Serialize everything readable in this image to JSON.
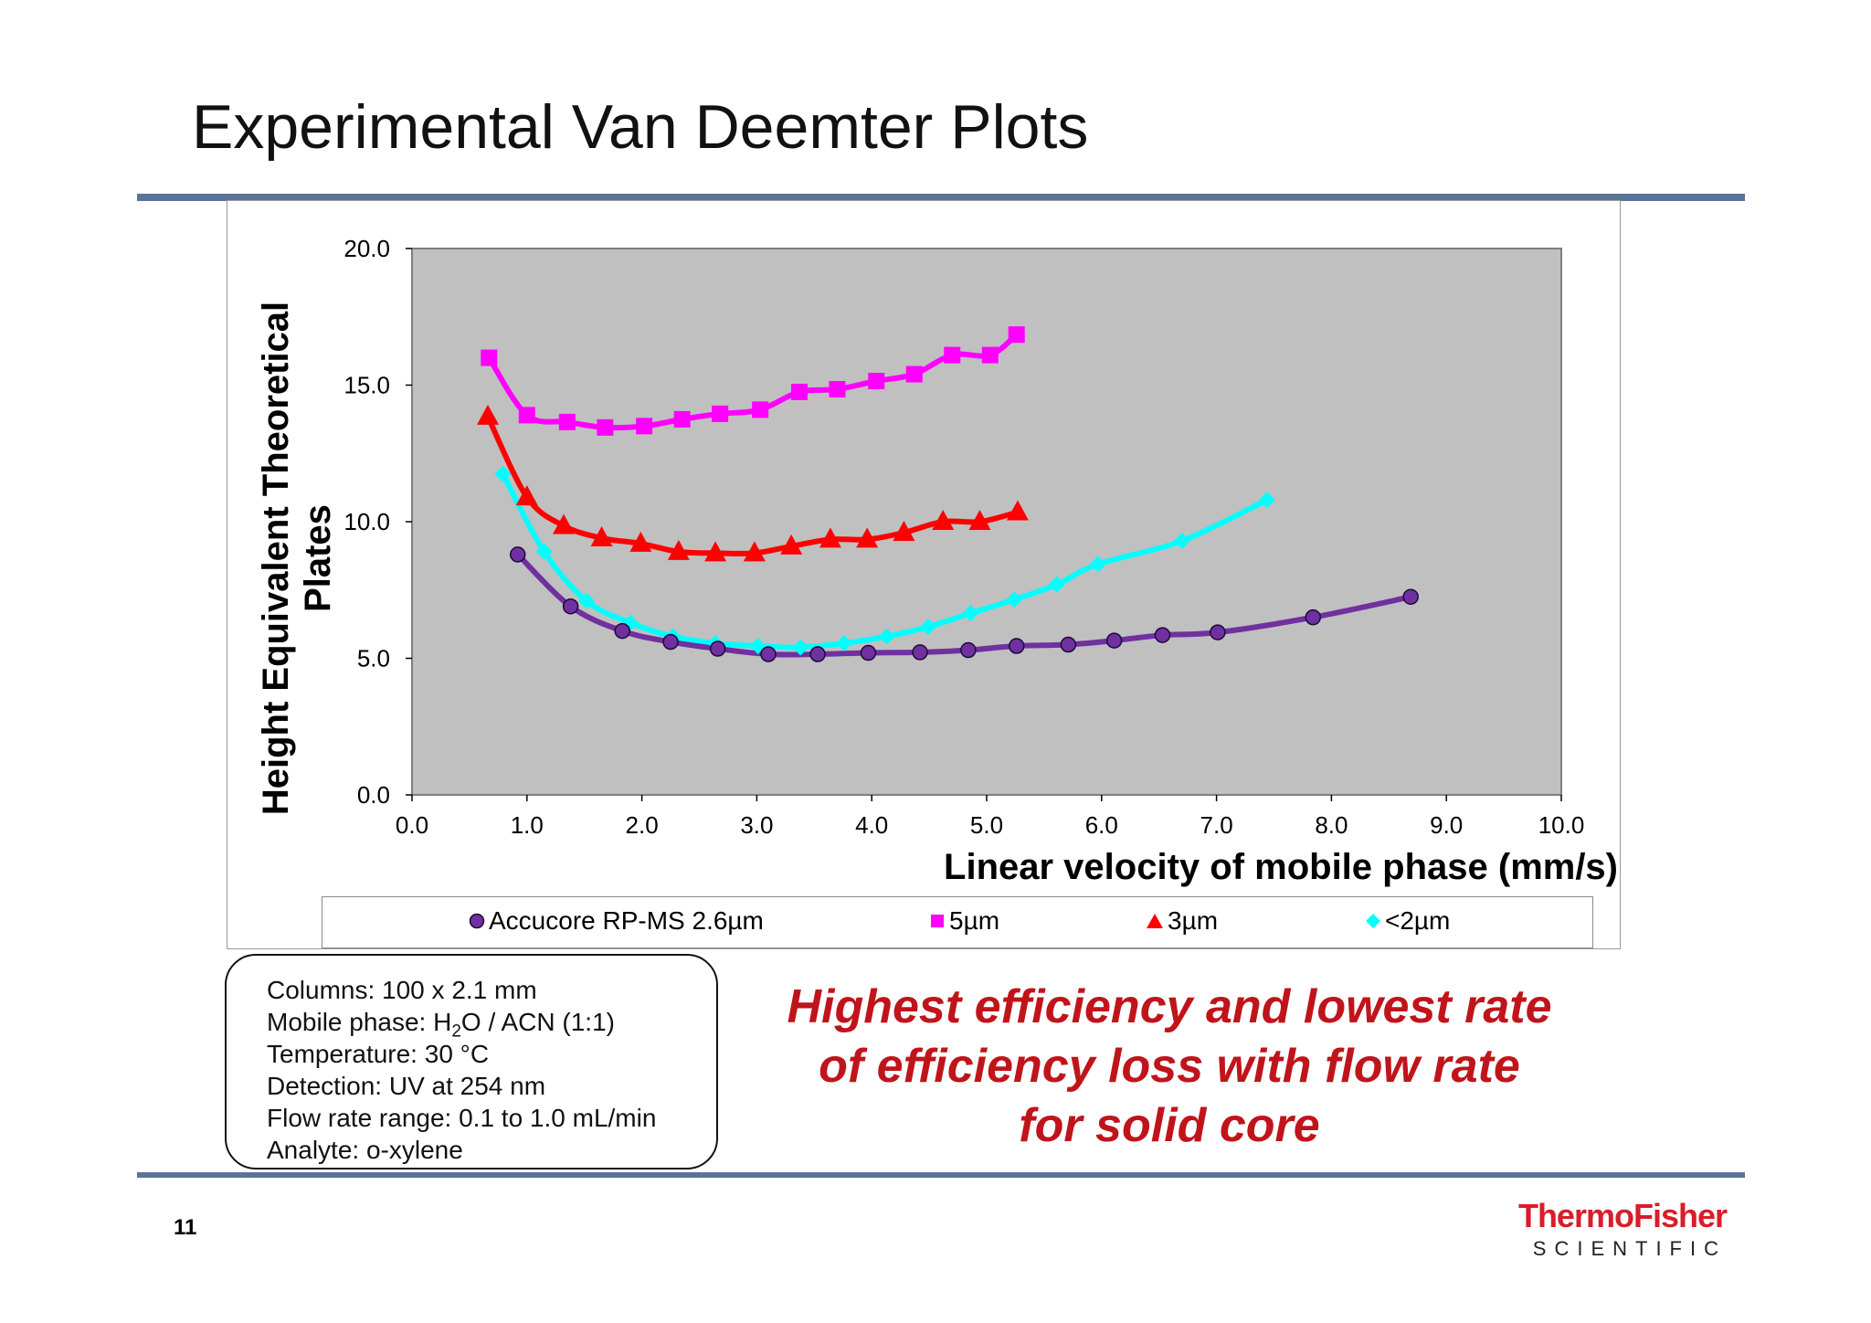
{
  "slide": {
    "title": "Experimental Van Deemter Plots",
    "page_number": "11"
  },
  "info_box": {
    "lines": [
      {
        "pre": "Columns: 100 x 2.1 mm",
        "sub": "",
        "post": ""
      },
      {
        "pre": "Mobile phase: H",
        "sub": "2",
        "post": "O / ACN (1:1)"
      },
      {
        "pre": "Temperature: 30 °C",
        "sub": "",
        "post": ""
      },
      {
        "pre": "Detection: UV at 254 nm",
        "sub": "",
        "post": ""
      },
      {
        "pre": "Flow rate range: 0.1 to 1.0 mL/min",
        "sub": "",
        "post": ""
      },
      {
        "pre": "Analyte: o-xylene",
        "sub": "",
        "post": ""
      }
    ]
  },
  "callout": {
    "text": "Highest efficiency and lowest rate of efficiency loss with flow rate for solid core"
  },
  "logo": {
    "brand": "ThermoFisher",
    "sub": "SCIENTIFIC"
  },
  "colors": {
    "rule": "#5b7399",
    "plot_bg": "#c0c0c0",
    "callout": "#c0141b"
  },
  "chart_data": {
    "type": "scatter",
    "xlabel": "Linear velocity of mobile phase (mm/s)",
    "ylabel_lines": [
      "Height Equivalent Theoretical",
      "Plates"
    ],
    "xlim": [
      0,
      10
    ],
    "ylim": [
      0,
      20
    ],
    "xticks": [
      "0.0",
      "1.0",
      "2.0",
      "3.0",
      "4.0",
      "5.0",
      "6.0",
      "7.0",
      "8.0",
      "9.0",
      "10.0"
    ],
    "yticks": [
      "0.0",
      "5.0",
      "10.0",
      "15.0",
      "20.0"
    ],
    "grid": false,
    "legend_position": "bottom",
    "series": [
      {
        "name": "Accucore RP-MS 2.6µm",
        "marker": "circle",
        "color": "#7030a0",
        "points": [
          [
            0.92,
            8.8
          ],
          [
            1.38,
            6.9
          ],
          [
            1.83,
            6.0
          ],
          [
            2.25,
            5.6
          ],
          [
            2.66,
            5.35
          ],
          [
            3.1,
            5.15
          ],
          [
            3.53,
            5.15
          ],
          [
            3.97,
            5.2
          ],
          [
            4.42,
            5.22
          ],
          [
            4.84,
            5.3
          ],
          [
            5.26,
            5.45
          ],
          [
            5.71,
            5.5
          ],
          [
            6.11,
            5.65
          ],
          [
            6.53,
            5.85
          ],
          [
            7.01,
            5.95
          ],
          [
            7.84,
            6.5
          ],
          [
            8.69,
            7.25
          ]
        ]
      },
      {
        "name": "5µm",
        "marker": "square",
        "color": "#ff00ff",
        "points": [
          [
            0.67,
            16.0
          ],
          [
            1.0,
            13.9
          ],
          [
            1.35,
            13.65
          ],
          [
            1.68,
            13.45
          ],
          [
            2.02,
            13.5
          ],
          [
            2.35,
            13.75
          ],
          [
            2.68,
            13.95
          ],
          [
            3.03,
            14.1
          ],
          [
            3.37,
            14.75
          ],
          [
            3.7,
            14.85
          ],
          [
            4.04,
            15.15
          ],
          [
            4.37,
            15.4
          ],
          [
            4.7,
            16.1
          ],
          [
            5.03,
            16.1
          ],
          [
            5.26,
            16.85
          ]
        ]
      },
      {
        "name": "3µm",
        "marker": "triangle",
        "color": "#ff0000",
        "points": [
          [
            0.66,
            13.85
          ],
          [
            1.0,
            10.9
          ],
          [
            1.32,
            9.85
          ],
          [
            1.65,
            9.4
          ],
          [
            1.99,
            9.2
          ],
          [
            2.32,
            8.9
          ],
          [
            2.64,
            8.85
          ],
          [
            2.98,
            8.85
          ],
          [
            3.3,
            9.1
          ],
          [
            3.64,
            9.35
          ],
          [
            3.96,
            9.35
          ],
          [
            4.28,
            9.6
          ],
          [
            4.62,
            10.0
          ],
          [
            4.94,
            10.0
          ],
          [
            5.27,
            10.35
          ]
        ]
      },
      {
        "name": "<2µm",
        "marker": "diamond",
        "color": "#00ffff",
        "points": [
          [
            0.79,
            11.75
          ],
          [
            1.15,
            8.9
          ],
          [
            1.52,
            7.1
          ],
          [
            1.9,
            6.3
          ],
          [
            2.27,
            5.8
          ],
          [
            2.64,
            5.55
          ],
          [
            3.01,
            5.45
          ],
          [
            3.38,
            5.4
          ],
          [
            3.76,
            5.55
          ],
          [
            4.13,
            5.8
          ],
          [
            4.49,
            6.15
          ],
          [
            4.86,
            6.65
          ],
          [
            5.24,
            7.15
          ],
          [
            5.61,
            7.7
          ],
          [
            5.97,
            8.45
          ],
          [
            6.7,
            9.3
          ],
          [
            7.44,
            10.8
          ]
        ]
      }
    ]
  }
}
